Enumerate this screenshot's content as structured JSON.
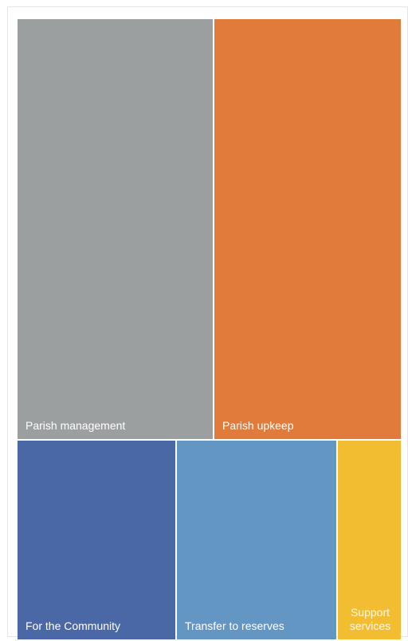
{
  "chart_data": {
    "type": "treemap",
    "title": "",
    "items": [
      {
        "label": "Parish management",
        "value": 33.0,
        "color": "#9c9fa0"
      },
      {
        "label": "Parish upkeep",
        "value": 30.7,
        "color": "#e17b3c"
      },
      {
        "label": "For the Community",
        "value": 13.3,
        "color": "#4a67a6"
      },
      {
        "label": "Transfer to reserves",
        "value": 13.3,
        "color": "#6496c4"
      },
      {
        "label": "Support services",
        "value": 5.3,
        "color": "#f2bd31"
      }
    ]
  }
}
